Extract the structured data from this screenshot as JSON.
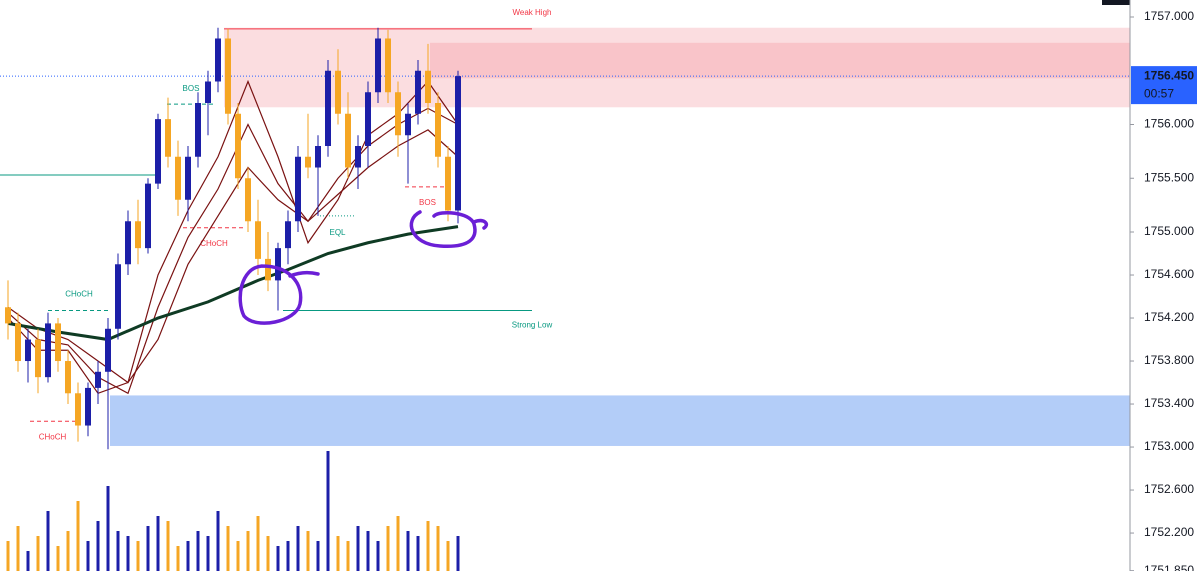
{
  "chart_data": {
    "type": "candlestick",
    "ylim": [
      1751.847,
      1757.158
    ],
    "yticks": [
      {
        "value": 1757.0,
        "label": "1757.000"
      },
      {
        "value": 1756.0,
        "label": "1756.000"
      },
      {
        "value": 1755.5,
        "label": "1755.500"
      },
      {
        "value": 1755.0,
        "label": "1755.000"
      },
      {
        "value": 1754.6,
        "label": "1754.600"
      },
      {
        "value": 1754.2,
        "label": "1754.200"
      },
      {
        "value": 1753.8,
        "label": "1753.800"
      },
      {
        "value": 1753.4,
        "label": "1753.400"
      },
      {
        "value": 1753.0,
        "label": "1753.000"
      },
      {
        "value": 1752.6,
        "label": "1752.600"
      },
      {
        "value": 1752.2,
        "label": "1752.200"
      },
      {
        "value": 1751.85,
        "label": "1751.850"
      }
    ],
    "up_color": "#1c1fa8",
    "down_color": "#f5a623",
    "open": [
      1754.3,
      1754.15,
      1753.8,
      1754.0,
      1753.65,
      1754.15,
      1753.8,
      1753.5,
      1753.2,
      1753.55,
      1753.7,
      1754.1,
      1754.7,
      1755.1,
      1754.85,
      1755.45,
      1756.05,
      1755.7,
      1755.3,
      1755.7,
      1756.2,
      1756.4,
      1756.8,
      1756.1,
      1755.5,
      1755.1,
      1754.75,
      1754.55,
      1754.85,
      1755.1,
      1755.7,
      1755.6,
      1755.8,
      1756.5,
      1756.1,
      1755.6,
      1755.8,
      1756.3,
      1756.8,
      1756.3,
      1755.9,
      1756.1,
      1756.5,
      1756.2,
      1755.7,
      1755.2
    ],
    "high": [
      1754.55,
      1754.25,
      1754.1,
      1754.1,
      1754.25,
      1754.2,
      1753.9,
      1753.6,
      1753.6,
      1753.8,
      1754.2,
      1754.8,
      1755.2,
      1755.3,
      1755.5,
      1756.1,
      1756.25,
      1755.85,
      1755.8,
      1756.3,
      1756.5,
      1756.9,
      1756.89,
      1756.2,
      1755.6,
      1755.3,
      1755.0,
      1754.9,
      1755.2,
      1755.8,
      1756.1,
      1755.9,
      1756.6,
      1756.7,
      1756.3,
      1755.9,
      1756.4,
      1756.9,
      1756.88,
      1756.4,
      1756.2,
      1756.6,
      1756.75,
      1756.3,
      1755.8,
      1756.5
    ],
    "low": [
      1754.0,
      1753.7,
      1753.6,
      1753.5,
      1753.6,
      1753.7,
      1753.4,
      1753.05,
      1753.1,
      1753.4,
      1752.98,
      1754.0,
      1754.6,
      1754.7,
      1754.8,
      1755.4,
      1755.6,
      1755.15,
      1755.1,
      1755.6,
      1755.9,
      1756.3,
      1756.0,
      1755.4,
      1755.0,
      1754.6,
      1754.45,
      1754.27,
      1754.7,
      1755.0,
      1755.5,
      1755.15,
      1755.7,
      1756.0,
      1755.5,
      1755.4,
      1755.6,
      1756.2,
      1756.2,
      1755.7,
      1755.45,
      1756.0,
      1756.1,
      1755.6,
      1755.1,
      1755.08
    ],
    "close": [
      1754.15,
      1753.8,
      1754.0,
      1753.65,
      1754.15,
      1753.8,
      1753.5,
      1753.2,
      1753.55,
      1753.7,
      1754.1,
      1754.7,
      1755.1,
      1754.85,
      1755.45,
      1756.05,
      1755.7,
      1755.3,
      1755.7,
      1756.2,
      1756.4,
      1756.8,
      1756.1,
      1755.5,
      1755.1,
      1754.75,
      1754.55,
      1754.85,
      1755.1,
      1755.7,
      1755.6,
      1755.8,
      1756.5,
      1756.1,
      1755.6,
      1755.8,
      1756.3,
      1756.8,
      1756.3,
      1755.9,
      1756.1,
      1756.5,
      1756.2,
      1755.7,
      1755.2,
      1756.45
    ],
    "volume": [
      30,
      45,
      20,
      35,
      60,
      25,
      40,
      70,
      30,
      50,
      85,
      40,
      35,
      30,
      45,
      55,
      50,
      25,
      30,
      40,
      35,
      60,
      45,
      30,
      40,
      55,
      35,
      25,
      30,
      45,
      40,
      30,
      120,
      35,
      30,
      45,
      40,
      30,
      45,
      55,
      40,
      35,
      50,
      45,
      30,
      35
    ],
    "series": [
      {
        "color": "#7a1212",
        "x": [
          0,
          3,
          6,
          9,
          12,
          15,
          18,
          21,
          24,
          27,
          30,
          33,
          36,
          39,
          42,
          45
        ],
        "values": [
          1754.2,
          1753.9,
          1753.9,
          1753.5,
          1753.6,
          1754.6,
          1755.2,
          1755.7,
          1756.4,
          1755.7,
          1754.9,
          1755.3,
          1755.9,
          1756.1,
          1756.4,
          1756.0
        ]
      },
      {
        "color": "#7a1212",
        "x": [
          0,
          3,
          6,
          9,
          12,
          15,
          18,
          21,
          24,
          27,
          30,
          33,
          36,
          39,
          42,
          45
        ],
        "values": [
          1754.25,
          1754.0,
          1753.95,
          1753.65,
          1753.5,
          1754.3,
          1754.95,
          1755.4,
          1756.0,
          1755.45,
          1755.1,
          1755.5,
          1755.8,
          1756.0,
          1756.15,
          1756.0
        ]
      },
      {
        "color": "#7a1212",
        "x": [
          0,
          3,
          6,
          9,
          12,
          15,
          18,
          21,
          24,
          27,
          30,
          33,
          36,
          39,
          42,
          45
        ],
        "values": [
          1754.3,
          1754.1,
          1754.0,
          1753.8,
          1753.6,
          1754.0,
          1754.7,
          1755.15,
          1755.6,
          1755.3,
          1755.1,
          1755.35,
          1755.6,
          1755.8,
          1755.95,
          1755.7
        ]
      },
      {
        "color": "#0f3b24",
        "x": [
          0,
          5,
          10,
          15,
          20,
          25,
          28,
          32,
          36,
          40,
          45
        ],
        "values": [
          1754.15,
          1754.07,
          1754.0,
          1754.2,
          1754.35,
          1754.55,
          1754.65,
          1754.8,
          1754.9,
          1754.98,
          1755.05
        ]
      }
    ],
    "zones": [
      {
        "top": 1756.9,
        "bottom": 1756.16,
        "color": "#fbdde0"
      },
      {
        "top": 1756.76,
        "bottom": 1756.43,
        "color": "#f9c4c9"
      },
      {
        "top": 1753.48,
        "bottom": 1753.01,
        "color": "#b3cdf8"
      }
    ],
    "structures": [
      {
        "level": 1755.53,
        "color": "#089981"
      },
      {
        "label": "CHoCH",
        "level": 1754.27,
        "color": "#089981"
      },
      {
        "label": "CHoCH",
        "level": 1753.24,
        "color": "#f23645"
      },
      {
        "label": "BOS",
        "level": 1756.19,
        "color": "#089981"
      },
      {
        "label": "CHoCH",
        "level": 1755.04,
        "color": "#f23645"
      },
      {
        "label": "EQL",
        "level": 1755.15,
        "color": "#089981"
      },
      {
        "label": "BOS",
        "level": 1755.42,
        "color": "#f23645"
      }
    ],
    "weak_high": {
      "label": "Weak High",
      "level": 1756.89,
      "color": "#f23645"
    },
    "strong_low": {
      "label": "Strong Low",
      "level": 1754.27,
      "color": "#089981"
    },
    "current_price": {
      "value": 1756.45,
      "label": "1756.450",
      "countdown": "00:57",
      "color": "#2962ff"
    }
  }
}
